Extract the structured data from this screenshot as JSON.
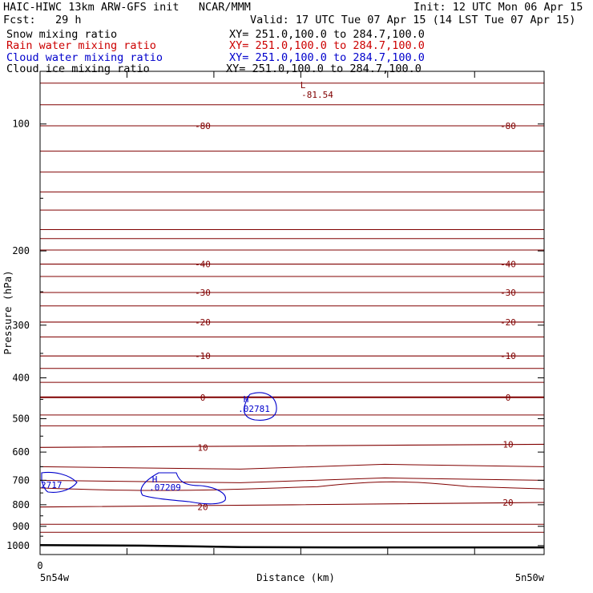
{
  "header": {
    "model_line": "HAIC-HIWC 13km ARW-GFS init   NCAR/MMM",
    "init_line": "Init: 12 UTC Mon 06 Apr 15",
    "fcst_line": "Fcst:   29 h",
    "valid_line": "Valid: 17 UTC Tue 07 Apr 15 (14 LST Tue 07 Apr 15)"
  },
  "fields": [
    {
      "name": "Snow mixing ratio",
      "xy": "XY= 251.0,100.0 to 284.7,100.0",
      "color": "#000000"
    },
    {
      "name": "Rain water mixing ratio",
      "xy": "XY= 251.0,100.0 to 284.7,100.0",
      "color": "#cc0000"
    },
    {
      "name": "Cloud water mixing ratio",
      "xy": "XY= 251.0,100.0 to 284.7,100.0",
      "color": "#0000cc"
    },
    {
      "name": "Cloud ice mixing ratio",
      "xy": "XY= 251.0,100.0 to 284.7,100.0",
      "color": "#000000"
    }
  ],
  "colors": {
    "temperature_contour": "#800000",
    "cloud_water_contour": "#0000cc",
    "terrain": "#000000",
    "frame": "#000000"
  },
  "chart_data": {
    "type": "contour cross-section",
    "xlabel": "Distance (km)",
    "ylabel": "Pressure (hPa)",
    "y_scale": "log",
    "ylim": [
      75,
      1050
    ],
    "x_ticks": [
      0,
      100,
      200,
      300,
      400,
      500
    ],
    "x_tick_labels": [
      "0",
      "",
      "",
      "",
      "",
      ""
    ],
    "y_ticks": [
      100,
      200,
      300,
      400,
      500,
      600,
      700,
      800,
      900,
      1000
    ],
    "endpoint_labels": {
      "left": "5n54w",
      "right": "5n50w"
    },
    "temperature_contours": [
      {
        "value": -80,
        "label": "-80",
        "p": [
          101,
          101,
          101
        ]
      },
      {
        "value": -40,
        "label": "-40",
        "p": [
          215,
          215,
          215
        ]
      },
      {
        "value": -30,
        "label": "-30",
        "p": [
          251,
          251,
          251
        ]
      },
      {
        "value": -20,
        "label": "-20",
        "p": [
          295,
          295,
          295
        ]
      },
      {
        "value": -10,
        "label": "-10",
        "p": [
          355,
          355,
          355
        ]
      },
      {
        "value": 0,
        "label": "0",
        "p": [
          445,
          445,
          445
        ]
      },
      {
        "value": 10,
        "label": "10",
        "p": [
          585,
          580,
          575
        ]
      },
      {
        "value": 20,
        "label": "20",
        "p": [
          810,
          800,
          790
        ]
      }
    ],
    "extrema": [
      {
        "type": "L",
        "value": "-81.54",
        "color": "#800000"
      },
      {
        "type": "H",
        "value": ".02781",
        "color": "#0000cc"
      },
      {
        "type": "H",
        "value": ".07209",
        "color": "#0000cc"
      },
      {
        "type": "",
        "value": "2717",
        "color": "#0000cc"
      }
    ],
    "terrain_pressure_hpa": [
      997,
      1000,
      1008,
      1010,
      1010,
      1010
    ],
    "grid": false,
    "legend": "none"
  }
}
